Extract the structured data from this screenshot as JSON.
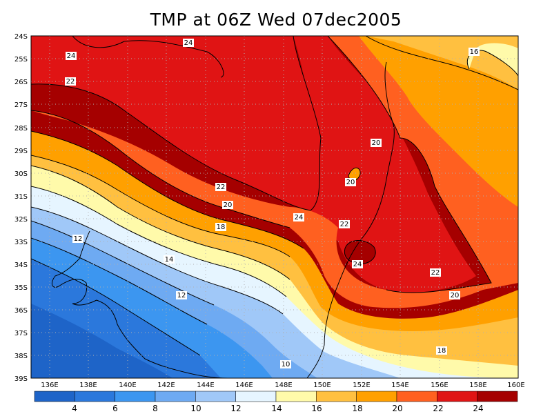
{
  "title": "TMP at 06Z Wed 07dec2005",
  "lat_ticks": [
    "24S",
    "25S",
    "26S",
    "27S",
    "28S",
    "29S",
    "30S",
    "31S",
    "32S",
    "33S",
    "34S",
    "35S",
    "36S",
    "37S",
    "38S",
    "39S"
  ],
  "lon_ticks": [
    "136E",
    "138E",
    "140E",
    "142E",
    "144E",
    "146E",
    "148E",
    "150E",
    "152E",
    "154E",
    "156E",
    "158E",
    "160E"
  ],
  "contour_labels": [
    "24",
    "24",
    "22",
    "16",
    "20",
    "20",
    "22",
    "20",
    "24",
    "18",
    "22",
    "12",
    "14",
    "24",
    "22",
    "20",
    "12",
    "18",
    "10"
  ],
  "colorbar": {
    "labels": [
      "4",
      "6",
      "8",
      "10",
      "12",
      "14",
      "16",
      "18",
      "20",
      "22",
      "24"
    ],
    "colors": [
      "#1e64c8",
      "#2b78dc",
      "#3c96f0",
      "#6eaaf2",
      "#a0c8f8",
      "#e6f5ff",
      "#fffaaa",
      "#ffc040",
      "#ffa000",
      "#ff6020",
      "#e01414",
      "#a50000"
    ]
  }
}
